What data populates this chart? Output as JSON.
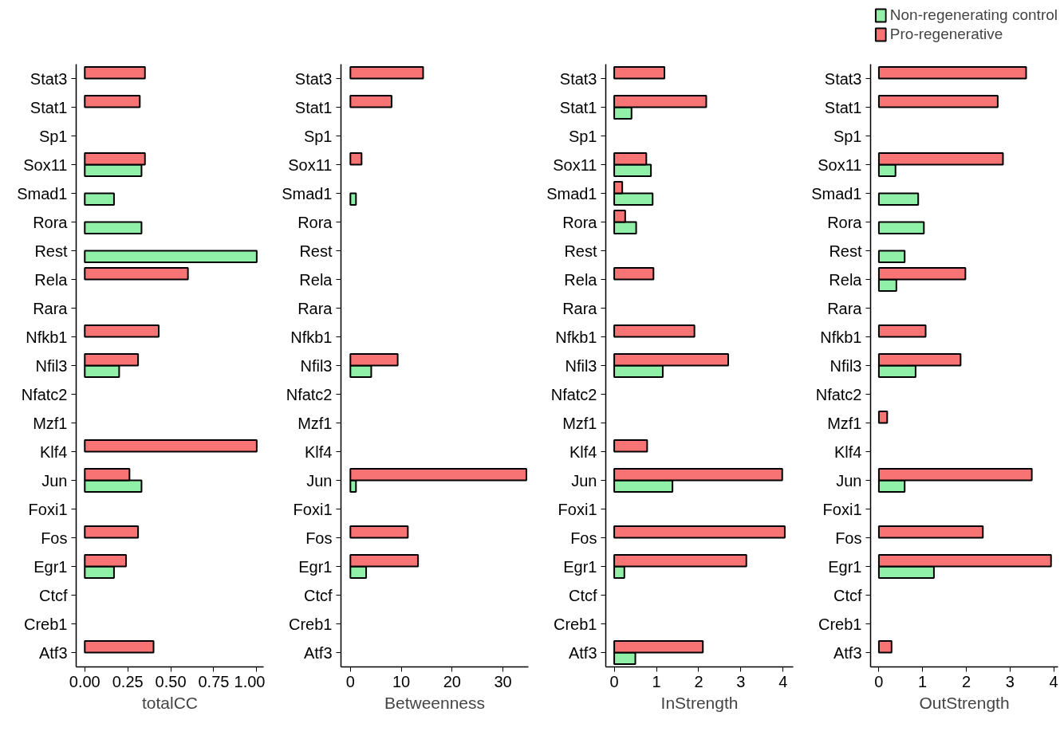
{
  "chart_data": [
    {
      "type": "bar",
      "orientation": "horizontal",
      "xlabel": "totalCC",
      "categories": [
        "Stat3",
        "Stat1",
        "Sp1",
        "Sox11",
        "Smad1",
        "Rora",
        "Rest",
        "Rela",
        "Rara",
        "Nfkb1",
        "Nfil3",
        "Nfatc2",
        "Mzf1",
        "Klf4",
        "Jun",
        "Foxi1",
        "Fos",
        "Egr1",
        "Ctcf",
        "Creb1",
        "Atf3"
      ],
      "xlim": [
        -0.05,
        1.04
      ],
      "xticks": [
        {
          "value": 0,
          "label": "0.00"
        },
        {
          "value": 0.25,
          "label": "0.25"
        },
        {
          "value": 0.5,
          "label": "0.50"
        },
        {
          "value": 0.75,
          "label": "0.75"
        },
        {
          "value": 1,
          "label": "1.00"
        }
      ],
      "grid": false,
      "series": [
        {
          "color": "#90f0a8",
          "values": [
            0,
            0,
            0,
            0.33,
            0.17,
            0.33,
            1.0,
            0,
            0,
            0,
            0.2,
            0,
            0,
            0,
            0.33,
            0,
            0,
            0.17,
            0,
            0,
            0
          ]
        },
        {
          "color": "#f87474",
          "values": [
            0.35,
            0.32,
            0,
            0.35,
            0,
            0,
            0,
            0.6,
            0,
            0.43,
            0.31,
            0,
            0,
            1.0,
            0.26,
            0,
            0.31,
            0.24,
            0,
            0,
            0.4
          ]
        }
      ]
    },
    {
      "type": "bar",
      "orientation": "horizontal",
      "xlabel": "Betweenness",
      "categories": [
        "Stat3",
        "Stat1",
        "Sp1",
        "Sox11",
        "Smad1",
        "Rora",
        "Rest",
        "Rela",
        "Rara",
        "Nfkb1",
        "Nfil3",
        "Nfatc2",
        "Mzf1",
        "Klf4",
        "Jun",
        "Foxi1",
        "Fos",
        "Egr1",
        "Ctcf",
        "Creb1",
        "Atf3"
      ],
      "xlim": [
        -1.85,
        35
      ],
      "xticks": [
        0,
        10,
        20,
        30
      ],
      "grid": false,
      "series": [
        {
          "color": "#90f0a8",
          "values": [
            0,
            0,
            0,
            0,
            1.1,
            0,
            0,
            0,
            0,
            0,
            4.1,
            0,
            0,
            0,
            1.1,
            0,
            0,
            3.1,
            0,
            0,
            0
          ]
        },
        {
          "color": "#f87474",
          "values": [
            14.3,
            8.1,
            0,
            2.2,
            0,
            0,
            0,
            0,
            0,
            0,
            9.3,
            0,
            0,
            0,
            34.6,
            0,
            11.3,
            13.3,
            0,
            0,
            0
          ]
        }
      ]
    },
    {
      "type": "bar",
      "orientation": "horizontal",
      "xlabel": "InStrength",
      "categories": [
        "Stat3",
        "Stat1",
        "Sp1",
        "Sox11",
        "Smad1",
        "Rora",
        "Rest",
        "Rela",
        "Rara",
        "Nfkb1",
        "Nfil3",
        "Nfatc2",
        "Mzf1",
        "Klf4",
        "Jun",
        "Foxi1",
        "Fos",
        "Egr1",
        "Ctcf",
        "Creb1",
        "Atf3"
      ],
      "xlim": [
        -0.2,
        4.24
      ],
      "xticks": [
        0,
        1,
        2,
        3,
        4
      ],
      "grid": false,
      "series": [
        {
          "color": "#90f0a8",
          "values": [
            0,
            0.41,
            0,
            0.87,
            0.91,
            0.52,
            0,
            0,
            0,
            0,
            1.15,
            0,
            0,
            0,
            1.38,
            0,
            0,
            0.24,
            0,
            0,
            0.5
          ]
        },
        {
          "color": "#f87474",
          "values": [
            1.19,
            2.18,
            0,
            0.76,
            0.19,
            0.26,
            0,
            0.93,
            0,
            1.9,
            2.7,
            0,
            0,
            0.78,
            3.98,
            0,
            4.04,
            3.13,
            0,
            0,
            2.1
          ]
        }
      ]
    },
    {
      "type": "bar",
      "orientation": "horizontal",
      "xlabel": "OutStrength",
      "categories": [
        "Stat3",
        "Stat1",
        "Sp1",
        "Sox11",
        "Smad1",
        "Rora",
        "Rest",
        "Rela",
        "Rara",
        "Nfkb1",
        "Nfil3",
        "Nfatc2",
        "Mzf1",
        "Klf4",
        "Jun",
        "Foxi1",
        "Fos",
        "Egr1",
        "Ctcf",
        "Creb1",
        "Atf3"
      ],
      "xlim": [
        -0.19,
        4.1
      ],
      "xticks": [
        0,
        1,
        2,
        3,
        4
      ],
      "grid": false,
      "legend": "top",
      "series": [
        {
          "name": "Non-regenerating control",
          "color": "#90f0a8",
          "values": [
            0,
            0,
            0,
            0.38,
            0.9,
            1.03,
            0.59,
            0.4,
            0,
            0,
            0.84,
            0,
            0,
            0,
            0.59,
            0,
            0,
            1.26,
            0,
            0,
            0
          ]
        },
        {
          "name": "Pro-regenerative",
          "color": "#f87474",
          "values": [
            3.37,
            2.72,
            0,
            2.84,
            0,
            0,
            0,
            1.98,
            0,
            1.07,
            1.87,
            0,
            0.19,
            0,
            3.5,
            0,
            2.38,
            3.94,
            0,
            0,
            0.29
          ]
        }
      ]
    }
  ]
}
